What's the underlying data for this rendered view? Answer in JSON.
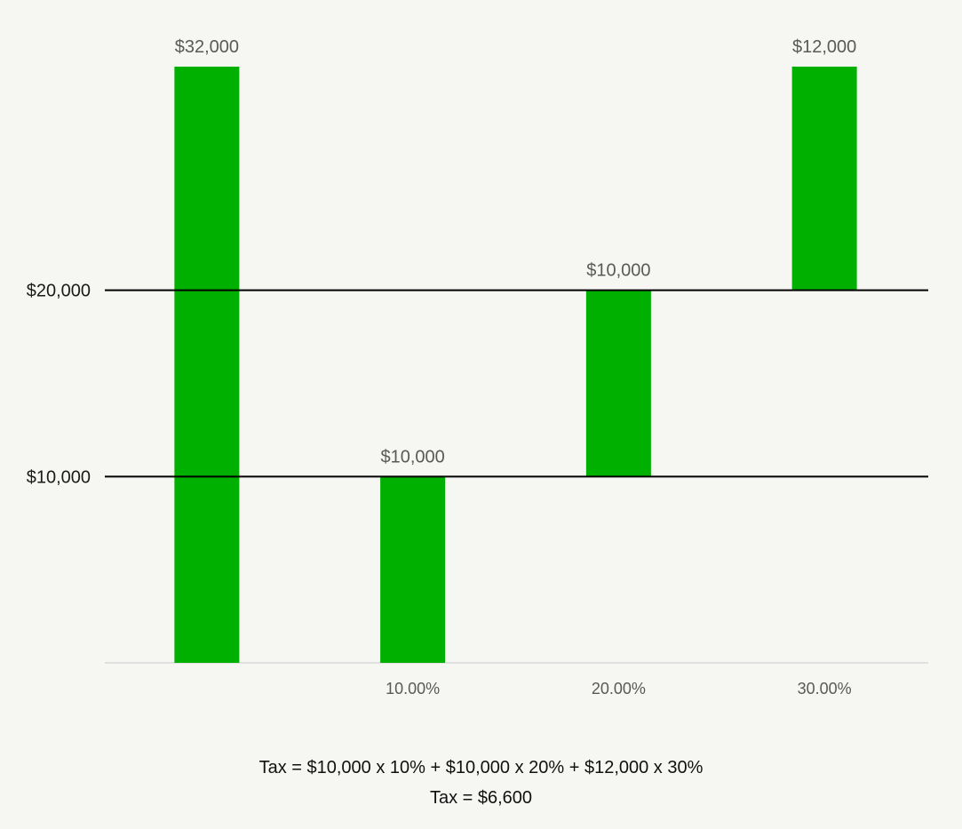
{
  "chart_data": {
    "type": "bar",
    "chart_style": "floating-bar",
    "categories": [
      "",
      "10.00%",
      "20.00%",
      "30.00%"
    ],
    "bars": [
      {
        "category": "",
        "from": 0,
        "to": 32000,
        "label": "$32,000"
      },
      {
        "category": "10.00%",
        "from": 0,
        "to": 10000,
        "label": "$10,000"
      },
      {
        "category": "20.00%",
        "from": 10000,
        "to": 20000,
        "label": "$10,000"
      },
      {
        "category": "30.00%",
        "from": 20000,
        "to": 32000,
        "label": "$12,000"
      }
    ],
    "y_ticks": [
      {
        "value": 10000,
        "label": "$10,000"
      },
      {
        "value": 20000,
        "label": "$20,000"
      }
    ],
    "ylim": [
      0,
      32000
    ],
    "grid": false,
    "legend": "none",
    "colors": {
      "bar": "#00b000",
      "reference_line": "#000000",
      "baseline": "#d9d9d9",
      "background": "#f6f7f2"
    }
  },
  "notes": {
    "line1": "Tax = $10,000 x 10% + $10,000 x 20% + $12,000 x 30%",
    "line2": "Tax = $6,600"
  }
}
